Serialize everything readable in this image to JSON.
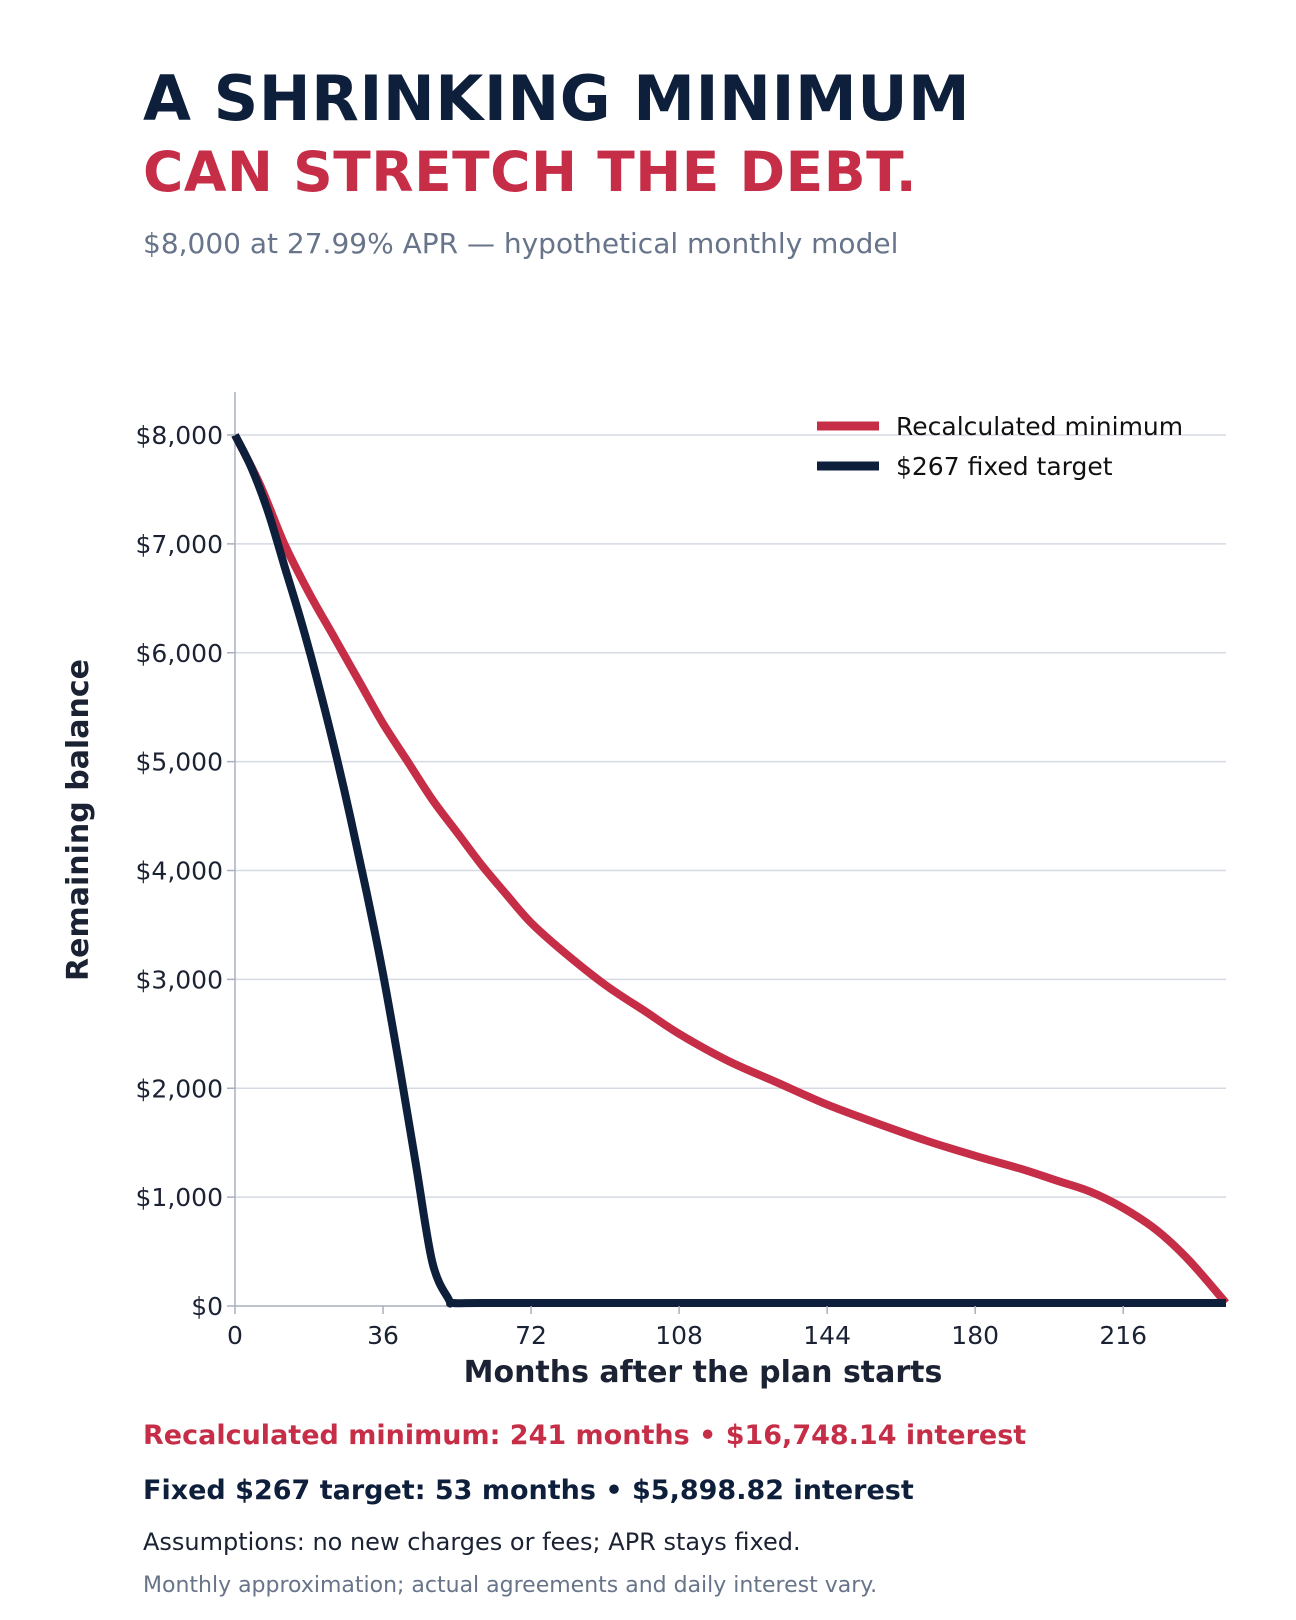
{
  "header": {
    "title_line1": "A SHRINKING MINIMUM",
    "title_line2": "CAN STRETCH THE DEBT.",
    "subtitle": "$8,000 at 27.99% APR — hypothetical monthly model"
  },
  "colors": {
    "navy": "#0e1f3b",
    "red": "#c62d47",
    "gray": "#67748a",
    "grid": "#d5dae3"
  },
  "chart_data": {
    "type": "line",
    "xlabel": "Months after the plan starts",
    "ylabel": "Remaining balance",
    "xlim": [
      0,
      241
    ],
    "ylim": [
      0,
      8400
    ],
    "x_ticks": [
      0,
      36,
      72,
      108,
      144,
      180,
      216
    ],
    "x_tick_labels": [
      "0",
      "36",
      "72",
      "108",
      "144",
      "180",
      "216"
    ],
    "y_ticks": [
      0,
      1000,
      2000,
      3000,
      4000,
      5000,
      6000,
      7000,
      8000
    ],
    "y_tick_labels": [
      "$0",
      "$1,000",
      "$2,000",
      "$3,000",
      "$4,000",
      "$5,000",
      "$6,000",
      "$7,000",
      "$8,000"
    ],
    "grid": "horizontal",
    "legend_position": "top-right",
    "series": [
      {
        "name": "Recalculated minimum",
        "color": "#c62d47",
        "x": [
          0,
          6,
          12,
          18,
          24,
          30,
          36,
          42,
          48,
          54,
          60,
          66,
          72,
          80,
          90,
          100,
          108,
          120,
          132,
          144,
          156,
          168,
          180,
          192,
          200,
          208,
          216,
          224,
          232,
          241
        ],
        "y": [
          8000,
          7550,
          7000,
          6550,
          6150,
          5750,
          5350,
          5000,
          4650,
          4350,
          4050,
          3780,
          3520,
          3250,
          2950,
          2700,
          2500,
          2250,
          2050,
          1850,
          1680,
          1520,
          1380,
          1250,
          1150,
          1050,
          900,
          700,
          420,
          0
        ]
      },
      {
        "name": "$267 fixed target",
        "color": "#0e1f3b",
        "x": [
          0,
          4,
          8,
          12,
          16,
          20,
          24,
          28,
          32,
          36,
          40,
          44,
          48,
          52,
          53,
          60,
          90,
          120,
          150,
          180,
          210,
          241
        ],
        "y": [
          8000,
          7700,
          7300,
          6800,
          6300,
          5750,
          5150,
          4500,
          3800,
          3050,
          2200,
          1300,
          400,
          60,
          0,
          0,
          0,
          0,
          0,
          0,
          0,
          0
        ]
      }
    ]
  },
  "footer": {
    "line1": "Recalculated minimum: 241 months • $16,748.14 interest",
    "line2": "Fixed $267 target: 53 months • $5,898.82 interest",
    "line3": "Assumptions: no new charges or fees; APR stays fixed.",
    "line4": "Monthly approximation; actual agreements and daily interest vary."
  }
}
